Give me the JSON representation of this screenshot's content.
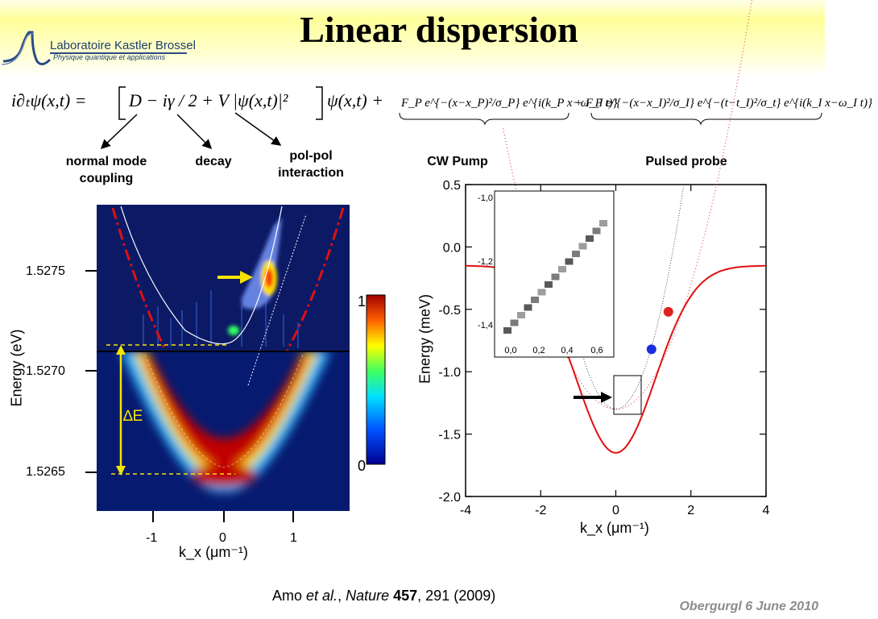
{
  "slide": {
    "title": "Linear dispersion",
    "logo": {
      "name": "Laboratoire Kastler Brossel",
      "tagline": "Physique quantique et applications"
    },
    "equation": {
      "lhs": "i∂ₜψ(x,t) =",
      "bracket": "D − iγ / 2 + V |ψ(x,t)|²",
      "psi": "ψ(x,t) +",
      "pump_term": "F_P e^{−(x−x_P)²/σ_P} e^{i(k_P x−ω_P t)}",
      "probe_term": "+ F_I e^{−(x−x_I)²/σ_I} e^{−(t−t_I)²/σ_t} e^{i(k_I x−ω_I t)}"
    },
    "annotations": {
      "normal_mode": "normal mode coupling",
      "decay": "decay",
      "polpol": "pol-pol interaction",
      "cw_pump": "CW Pump",
      "pulsed_probe": "Pulsed probe"
    },
    "citation": {
      "authors": "Amo",
      "etal": "et al.",
      "journal": "Nature",
      "volume": "457",
      "pages_year": ", 291 (2009)"
    },
    "footer": "Obergurgl 6 June 2010"
  },
  "chart_data": [
    {
      "type": "heatmap",
      "ylabel": "Energy (eV)",
      "xlabel": "k_x (μm⁻¹)",
      "y_ticks": [
        "1.5275",
        "1.5270",
        "1.5265"
      ],
      "x_ticks": [
        "-1",
        "0",
        "1"
      ],
      "colorbar": {
        "min_label": "0",
        "max_label": "1"
      },
      "delta_label": "∆E"
    },
    {
      "type": "line",
      "ylabel": "Energy (meV)",
      "xlabel": "k_x (μm⁻¹)",
      "xlim": [
        -4,
        4
      ],
      "ylim": [
        -2.0,
        0.5
      ],
      "x_ticks": [
        "-4",
        "-2",
        "0",
        "2",
        "4"
      ],
      "y_ticks": [
        "0.5",
        "0.0",
        "-0.5",
        "-1.0",
        "-1.5",
        "-2.0"
      ],
      "markers": [
        {
          "name": "red",
          "x": 1.4,
          "y": -0.52,
          "color": "#e02020"
        },
        {
          "name": "blue",
          "x": 0.95,
          "y": -0.82,
          "color": "#1a2fe0"
        }
      ],
      "inset": {
        "x_ticks": [
          "0,0",
          "0,2",
          "0,4",
          "0,6"
        ],
        "y_ticks": [
          "-1,0",
          "-1,2",
          "-1,4"
        ]
      }
    }
  ]
}
